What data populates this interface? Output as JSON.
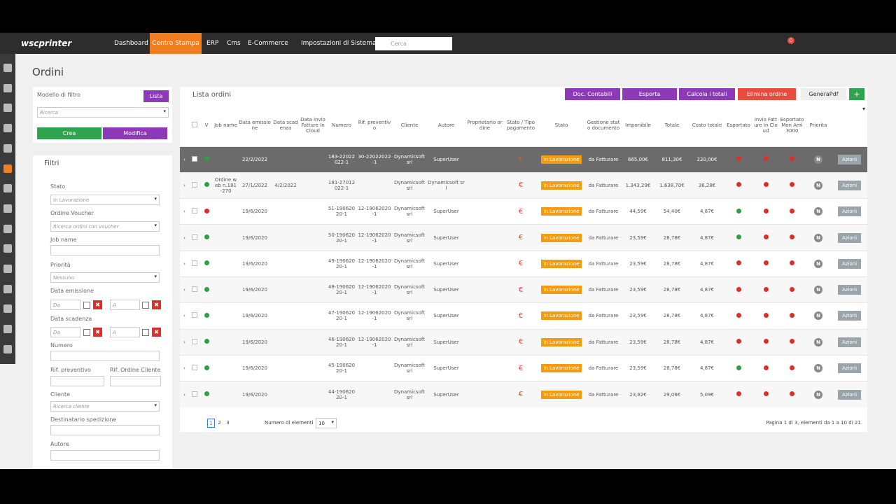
{
  "nav": {
    "logo": "wscprinter",
    "items": [
      "Dashboard",
      "Centro Stampa",
      "ERP",
      "Cms",
      "E-Commerce",
      "Impostazioni di Sistema"
    ],
    "search": "Cerca",
    "badge": "0"
  },
  "page": {
    "title": "Ordini"
  },
  "filter_model": {
    "label": "Modello di filtro",
    "list_button": "Lista",
    "select": "Ricerca",
    "create": "Crea",
    "edit": "Modifica"
  },
  "filters": {
    "title": "Filtri",
    "fields": [
      {
        "label": "Stato",
        "value": "In Lavorazione"
      },
      {
        "label": "Ordine Voucher",
        "placeholder": "Ricerca ordini con voucher"
      },
      {
        "label": "Job name"
      },
      {
        "label": "Priorità",
        "value": "Nessuno"
      },
      {
        "label": "Data emissione",
        "from": "Da",
        "to": "A"
      },
      {
        "label": "Data scadenza",
        "from": "Da",
        "to": "A"
      },
      {
        "label": "Numero"
      },
      {
        "label": "Rif. preventivo"
      },
      {
        "label": "Rif. Ordine Cliente"
      },
      {
        "label": "Cliente",
        "placeholder": "Ricerca cliente"
      },
      {
        "label": "Destinatario spedizione"
      },
      {
        "label": "Autore"
      }
    ]
  },
  "orders": {
    "title": "Lista ordini",
    "buttons": [
      "Doc. Contabili",
      "Esporta",
      "Calcola i totali",
      "Elimina ordine",
      "GeneraPdf",
      "+"
    ],
    "headers": [
      "V",
      "Job name",
      "Data emissione",
      "Data scadenza",
      "Data invio Fatture In Cloud",
      "Numero",
      "Rif. preventivo",
      "Cliente",
      "Autore",
      "Proprietario ordine",
      "Stato / Tipo pagamento",
      "Stato",
      "Gestione stato documento",
      "Imponibile",
      "Totale",
      "Costo totale",
      "Esportato",
      "Invio Fatture In Cloud",
      "Esportato Mon Ami 3000",
      "Priorita"
    ],
    "rows": [
      {
        "job": "",
        "issued": "22/2/2022",
        "due": "",
        "number": "183-22022022-1",
        "quote": "30-22022022-1",
        "client": "Dynamicsoft srl",
        "author": "SuperUser",
        "pay": "€",
        "state": "In Lavorazione",
        "doc": "da Fatturare",
        "net": "665,00€",
        "total": "811,30€",
        "cost": "220,00€",
        "v_color": "#2e9e47",
        "flag_colors": [
          "#d9302c",
          "#d9302c",
          "#d9302c"
        ],
        "priority": "N",
        "action": "Azioni"
      },
      {
        "job": "Ordine web n.181-270",
        "issued": "27/1/2022",
        "due": "4/2/2022",
        "number": "181-27012022-1",
        "quote": "",
        "client": "Dynamicsoft srl",
        "author": "Dynamicsoft srl",
        "pay": "€",
        "state": "In Lavorazione",
        "doc": "da Fatturare",
        "net": "1.343,29€",
        "total": "1.638,70€",
        "cost": "36,28€",
        "v_color": "#2e9e47",
        "flag_colors": [
          "#d9302c",
          "#d9302c",
          "#d9302c"
        ],
        "priority": "N",
        "action": "Azioni"
      },
      {
        "job": "",
        "issued": "19/6/2020",
        "due": "",
        "number": "51-19062020-1",
        "quote": "12-19062020-1",
        "client": "Dynamicsoft srl",
        "author": "SuperUser",
        "pay": "€",
        "state": "In Lavorazione",
        "doc": "da Fatturare",
        "net": "44,59€",
        "total": "54,40€",
        "cost": "4,87€",
        "v_color": "#d9302c",
        "flag_colors": [
          "#2e9e47",
          "#d9302c",
          "#d9302c"
        ],
        "priority": "N",
        "action": "Azioni"
      },
      {
        "job": "",
        "issued": "19/6/2020",
        "due": "",
        "number": "50-19062020-1",
        "quote": "12-19062020-1",
        "client": "Dynamicsoft srl",
        "author": "SuperUser",
        "pay": "€",
        "state": "In Lavorazione",
        "doc": "da Fatturare",
        "net": "23,59€",
        "total": "28,78€",
        "cost": "4,87€",
        "v_color": "#2e9e47",
        "flag_colors": [
          "#2e9e47",
          "#d9302c",
          "#d9302c"
        ],
        "priority": "N",
        "action": "Azioni"
      },
      {
        "job": "",
        "issued": "19/6/2020",
        "due": "",
        "number": "49-19062020-1",
        "quote": "12-19062020-1",
        "client": "Dynamicsoft srl",
        "author": "SuperUser",
        "pay": "€",
        "state": "In Lavorazione",
        "doc": "da Fatturare",
        "net": "23,59€",
        "total": "28,78€",
        "cost": "4,87€",
        "v_color": "#2e9e47",
        "flag_colors": [
          "#d9302c",
          "#d9302c",
          "#d9302c"
        ],
        "priority": "N",
        "action": "Azioni"
      },
      {
        "job": "",
        "issued": "19/6/2020",
        "due": "",
        "number": "48-19062020-1",
        "quote": "12-19062020-1",
        "client": "Dynamicsoft srl",
        "author": "SuperUser",
        "pay": "€",
        "state": "In Lavorazione",
        "doc": "da Fatturare",
        "net": "23,59€",
        "total": "28,78€",
        "cost": "4,87€",
        "v_color": "#2e9e47",
        "flag_colors": [
          "#d9302c",
          "#d9302c",
          "#d9302c"
        ],
        "priority": "N",
        "action": "Azioni"
      },
      {
        "job": "",
        "issued": "19/6/2020",
        "due": "",
        "number": "47-19062020-1",
        "quote": "12-19062020-1",
        "client": "Dynamicsoft srl",
        "author": "SuperUser",
        "pay": "€",
        "state": "In Lavorazione",
        "doc": "da Fatturare",
        "net": "23,59€",
        "total": "28,78€",
        "cost": "4,87€",
        "v_color": "#2e9e47",
        "flag_colors": [
          "#d9302c",
          "#d9302c",
          "#d9302c"
        ],
        "priority": "N",
        "action": "Azioni"
      },
      {
        "job": "",
        "issued": "19/6/2020",
        "due": "",
        "number": "46-19062020-1",
        "quote": "12-19062020-1",
        "client": "Dynamicsoft srl",
        "author": "SuperUser",
        "pay": "€",
        "state": "In Lavorazione",
        "doc": "da Fatturare",
        "net": "23,59€",
        "total": "28,78€",
        "cost": "4,87€",
        "v_color": "#2e9e47",
        "flag_colors": [
          "#d9302c",
          "#d9302c",
          "#d9302c"
        ],
        "priority": "N",
        "action": "Azioni"
      },
      {
        "job": "",
        "issued": "19/6/2020",
        "due": "",
        "number": "45-19062020-1",
        "quote": "",
        "client": "Dynamicsoft srl",
        "author": "SuperUser",
        "pay": "€",
        "state": "In Lavorazione",
        "doc": "da Fatturare",
        "net": "23,59€",
        "total": "28,78€",
        "cost": "4,87€",
        "v_color": "#2e9e47",
        "flag_colors": [
          "#2e9e47",
          "#d9302c",
          "#d9302c"
        ],
        "priority": "N",
        "action": "Azioni"
      },
      {
        "job": "",
        "issued": "19/6/2020",
        "due": "",
        "number": "44-19062020-1",
        "quote": "",
        "client": "Dynamicsoft srl",
        "author": "SuperUser",
        "pay": "€",
        "state": "In Lavorazione",
        "doc": "da Fatturare",
        "net": "23,82€",
        "total": "29,06€",
        "cost": "5,09€",
        "v_color": "#2e9e47",
        "flag_colors": [
          "#d9302c",
          "#d9302c",
          "#d9302c"
        ],
        "priority": "N",
        "action": "Azioni"
      }
    ],
    "pagination": {
      "pages": [
        "1",
        "2",
        "3"
      ],
      "per_page_label": "Numero di elementi",
      "per_page": "10",
      "summary": "Pagina 1 di 3, elementi da 1 a 10 di 21."
    }
  }
}
